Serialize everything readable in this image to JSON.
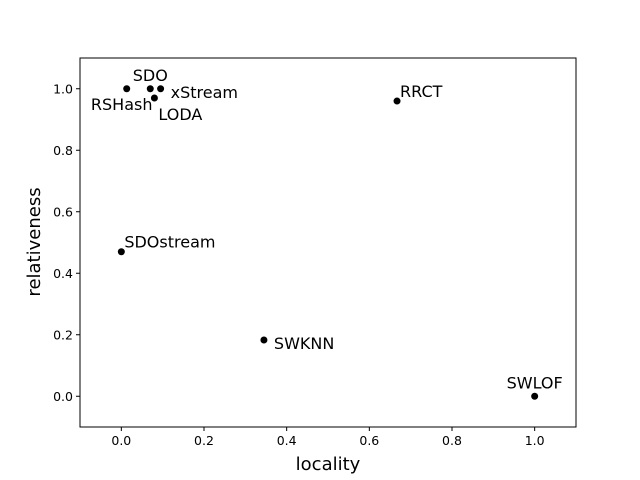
{
  "chart_data": {
    "type": "scatter",
    "xlabel": "locality",
    "ylabel": "relativeness",
    "xlim": [
      -0.1,
      1.1
    ],
    "ylim": [
      -0.1,
      1.1
    ],
    "xticks": [
      "0.0",
      "0.2",
      "0.4",
      "0.6",
      "0.8",
      "1.0"
    ],
    "yticks": [
      "0.0",
      "0.2",
      "0.4",
      "0.6",
      "0.8",
      "1.0"
    ],
    "grid": false,
    "marker_color": "#000000",
    "points": [
      {
        "label": "SDO",
        "x": 0.07,
        "y": 1.0,
        "label_pos": "above"
      },
      {
        "label": "RSHash",
        "x": 0.013,
        "y": 1.0,
        "label_pos": "below-left"
      },
      {
        "label": "xStream",
        "x": 0.095,
        "y": 1.0,
        "label_pos": "right"
      },
      {
        "label": "LODA",
        "x": 0.08,
        "y": 0.97,
        "label_pos": "below-right"
      },
      {
        "label": "RRCT",
        "x": 0.667,
        "y": 0.96,
        "label_pos": "above-right"
      },
      {
        "label": "SDOstream",
        "x": 0.0,
        "y": 0.47,
        "label_pos": "above-right"
      },
      {
        "label": "SWKNN",
        "x": 0.345,
        "y": 0.183,
        "label_pos": "right"
      },
      {
        "label": "SWLOF",
        "x": 1.0,
        "y": 0.0,
        "label_pos": "above"
      }
    ]
  }
}
